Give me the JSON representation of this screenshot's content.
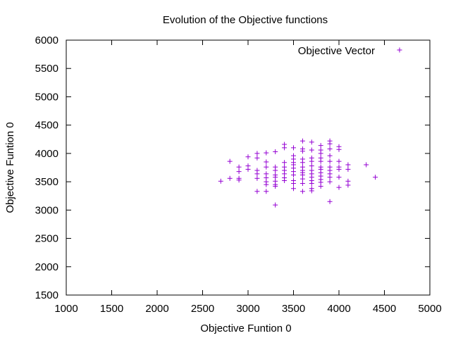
{
  "chart_data": {
    "type": "scatter",
    "title": "Evolution of the Objective functions",
    "xlabel": "Objective Funtion 0",
    "ylabel": "Objective Funtion 0",
    "xlim": [
      1000,
      5000
    ],
    "ylim": [
      1500,
      6000
    ],
    "xticks": [
      "1000",
      "1500",
      "2000",
      "2500",
      "3000",
      "3500",
      "4000",
      "4500",
      "5000"
    ],
    "yticks": [
      "1500",
      "2000",
      "2500",
      "3000",
      "3500",
      "4000",
      "4500",
      "5000",
      "5500",
      "6000"
    ],
    "grid": false,
    "legend": "top-right",
    "colors": {
      "series": "#9400d3",
      "axis": "#000000"
    },
    "series": [
      {
        "name": "Objective Vector",
        "marker": "plus",
        "points": [
          [
            2700,
            3510
          ],
          [
            2800,
            3860
          ],
          [
            2800,
            3560
          ],
          [
            2900,
            3760
          ],
          [
            2900,
            3680
          ],
          [
            2900,
            3560
          ],
          [
            2900,
            3530
          ],
          [
            3000,
            3940
          ],
          [
            3000,
            3780
          ],
          [
            3000,
            3720
          ],
          [
            3100,
            4000
          ],
          [
            3100,
            3920
          ],
          [
            3100,
            3700
          ],
          [
            3100,
            3640
          ],
          [
            3100,
            3560
          ],
          [
            3100,
            3330
          ],
          [
            3200,
            4010
          ],
          [
            3200,
            3850
          ],
          [
            3200,
            3760
          ],
          [
            3200,
            3640
          ],
          [
            3200,
            3570
          ],
          [
            3200,
            3500
          ],
          [
            3200,
            3450
          ],
          [
            3200,
            3330
          ],
          [
            3300,
            4030
          ],
          [
            3300,
            3760
          ],
          [
            3300,
            3700
          ],
          [
            3300,
            3620
          ],
          [
            3300,
            3580
          ],
          [
            3300,
            3510
          ],
          [
            3300,
            3450
          ],
          [
            3300,
            3420
          ],
          [
            3300,
            3090
          ],
          [
            3400,
            4160
          ],
          [
            3400,
            4100
          ],
          [
            3400,
            3840
          ],
          [
            3400,
            3760
          ],
          [
            3400,
            3700
          ],
          [
            3400,
            3640
          ],
          [
            3400,
            3570
          ],
          [
            3400,
            3520
          ],
          [
            3500,
            4100
          ],
          [
            3500,
            3960
          ],
          [
            3500,
            3900
          ],
          [
            3500,
            3840
          ],
          [
            3500,
            3800
          ],
          [
            3500,
            3740
          ],
          [
            3500,
            3680
          ],
          [
            3500,
            3620
          ],
          [
            3500,
            3520
          ],
          [
            3500,
            3470
          ],
          [
            3500,
            3380
          ],
          [
            3600,
            4220
          ],
          [
            3600,
            4080
          ],
          [
            3600,
            4040
          ],
          [
            3600,
            3900
          ],
          [
            3600,
            3840
          ],
          [
            3600,
            3760
          ],
          [
            3600,
            3700
          ],
          [
            3600,
            3660
          ],
          [
            3600,
            3620
          ],
          [
            3600,
            3550
          ],
          [
            3600,
            3470
          ],
          [
            3600,
            3330
          ],
          [
            3700,
            4200
          ],
          [
            3700,
            4060
          ],
          [
            3700,
            3920
          ],
          [
            3700,
            3860
          ],
          [
            3700,
            3780
          ],
          [
            3700,
            3700
          ],
          [
            3700,
            3640
          ],
          [
            3700,
            3580
          ],
          [
            3700,
            3520
          ],
          [
            3700,
            3470
          ],
          [
            3700,
            3380
          ],
          [
            3700,
            3340
          ],
          [
            3800,
            4140
          ],
          [
            3800,
            4060
          ],
          [
            3800,
            4000
          ],
          [
            3800,
            3920
          ],
          [
            3800,
            3860
          ],
          [
            3800,
            3760
          ],
          [
            3800,
            3720
          ],
          [
            3800,
            3660
          ],
          [
            3800,
            3600
          ],
          [
            3800,
            3540
          ],
          [
            3800,
            3490
          ],
          [
            3800,
            3420
          ],
          [
            3900,
            4220
          ],
          [
            3900,
            4170
          ],
          [
            3900,
            4080
          ],
          [
            3900,
            3960
          ],
          [
            3900,
            3860
          ],
          [
            3900,
            3760
          ],
          [
            3900,
            3700
          ],
          [
            3900,
            3640
          ],
          [
            3900,
            3580
          ],
          [
            3900,
            3500
          ],
          [
            3900,
            3150
          ],
          [
            4000,
            4120
          ],
          [
            4000,
            4070
          ],
          [
            4000,
            3860
          ],
          [
            4000,
            3760
          ],
          [
            4000,
            3720
          ],
          [
            4000,
            3580
          ],
          [
            4000,
            3400
          ],
          [
            4100,
            3800
          ],
          [
            4100,
            3720
          ],
          [
            4100,
            3510
          ],
          [
            4100,
            3440
          ],
          [
            4300,
            3800
          ],
          [
            4400,
            3580
          ]
        ]
      }
    ]
  }
}
